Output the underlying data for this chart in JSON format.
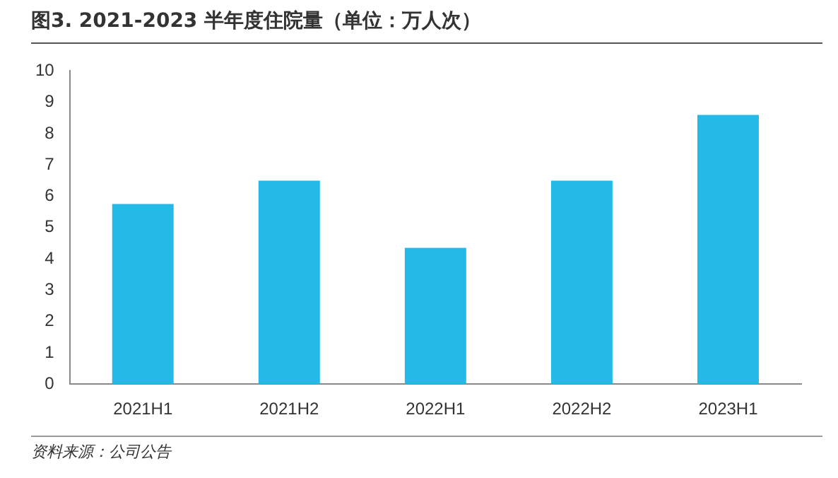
{
  "chart_data": {
    "type": "bar",
    "title": "图3. 2021-2023 半年度住院量（单位：万人次）",
    "categories": [
      "2021H1",
      "2021H2",
      "2022H1",
      "2022H2",
      "2023H1"
    ],
    "values": [
      5.75,
      6.5,
      4.35,
      6.5,
      8.6
    ],
    "color": "#25b9e8",
    "ylim": [
      0,
      10
    ],
    "yticks": [
      0,
      1,
      2,
      3,
      4,
      5,
      6,
      7,
      8,
      9,
      10
    ],
    "grid": false,
    "legend": false,
    "annotations": [
      "资料来源：公司公告"
    ]
  }
}
